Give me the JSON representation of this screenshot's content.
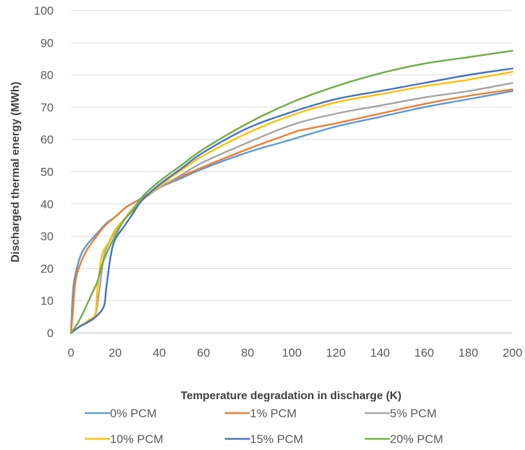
{
  "chart_data": {
    "type": "line",
    "title": "",
    "xlabel": "Temperature degradation in discharge (K)",
    "ylabel": "Discharged thermal energy (MWh)",
    "xlim": [
      0,
      200
    ],
    "ylim": [
      0,
      100
    ],
    "xticks": [
      0,
      20,
      40,
      60,
      80,
      100,
      120,
      140,
      160,
      180,
      200
    ],
    "yticks": [
      0,
      10,
      20,
      30,
      40,
      50,
      60,
      70,
      80,
      90,
      100
    ],
    "grid": "horizontal",
    "legend_position": "bottom",
    "series": [
      {
        "name": "0% PCM",
        "color": "#5B9BD5",
        "points": [
          [
            0,
            0
          ],
          [
            1,
            14
          ],
          [
            3,
            21
          ],
          [
            5,
            25
          ],
          [
            8,
            28
          ],
          [
            12,
            31
          ],
          [
            16,
            34
          ],
          [
            20,
            36
          ],
          [
            25,
            39
          ],
          [
            30,
            41
          ],
          [
            40,
            45
          ],
          [
            50,
            48
          ],
          [
            60,
            51
          ],
          [
            80,
            56
          ],
          [
            100,
            60
          ],
          [
            120,
            64
          ],
          [
            140,
            67
          ],
          [
            160,
            70
          ],
          [
            180,
            72.5
          ],
          [
            200,
            75
          ]
        ]
      },
      {
        "name": "1% PCM",
        "color": "#ED7D31",
        "points": [
          [
            0,
            0
          ],
          [
            1,
            8
          ],
          [
            2,
            16
          ],
          [
            4,
            21
          ],
          [
            7,
            25.5
          ],
          [
            10,
            28.5
          ],
          [
            15,
            33
          ],
          [
            20,
            36
          ],
          [
            25,
            39
          ],
          [
            30,
            41
          ],
          [
            40,
            45
          ],
          [
            50,
            48.5
          ],
          [
            60,
            51.5
          ],
          [
            80,
            57
          ],
          [
            100,
            62
          ],
          [
            105,
            63
          ],
          [
            120,
            65
          ],
          [
            140,
            68
          ],
          [
            160,
            71
          ],
          [
            180,
            73.5
          ],
          [
            200,
            75.5
          ]
        ]
      },
      {
        "name": "5% PCM",
        "color": "#A5A5A5",
        "points": [
          [
            0,
            0
          ],
          [
            4,
            2
          ],
          [
            8,
            3.5
          ],
          [
            11,
            5.5
          ],
          [
            13,
            14
          ],
          [
            15,
            24
          ],
          [
            18,
            29
          ],
          [
            22,
            33
          ],
          [
            26,
            37
          ],
          [
            30,
            40
          ],
          [
            40,
            45
          ],
          [
            50,
            49
          ],
          [
            60,
            53
          ],
          [
            80,
            59
          ],
          [
            100,
            64.5
          ],
          [
            120,
            68
          ],
          [
            140,
            70.5
          ],
          [
            160,
            73
          ],
          [
            180,
            75
          ],
          [
            200,
            77.5
          ]
        ]
      },
      {
        "name": "10% PCM",
        "color": "#FFC000",
        "points": [
          [
            0,
            0
          ],
          [
            4,
            2
          ],
          [
            8,
            4
          ],
          [
            11,
            6
          ],
          [
            12,
            14
          ],
          [
            14,
            24
          ],
          [
            17,
            28
          ],
          [
            20,
            32
          ],
          [
            25,
            36
          ],
          [
            30,
            40
          ],
          [
            40,
            45.5
          ],
          [
            50,
            50.5
          ],
          [
            60,
            55
          ],
          [
            80,
            62
          ],
          [
            100,
            67.5
          ],
          [
            120,
            71.5
          ],
          [
            140,
            74
          ],
          [
            160,
            76.5
          ],
          [
            180,
            78.5
          ],
          [
            200,
            81
          ]
        ]
      },
      {
        "name": "15% PCM",
        "color": "#4472C4",
        "points": [
          [
            0,
            0
          ],
          [
            4,
            2
          ],
          [
            8,
            3.5
          ],
          [
            12,
            5.5
          ],
          [
            15,
            8.5
          ],
          [
            16,
            14
          ],
          [
            18,
            24
          ],
          [
            20,
            29
          ],
          [
            24,
            33
          ],
          [
            28,
            37
          ],
          [
            32,
            41
          ],
          [
            40,
            46
          ],
          [
            50,
            51
          ],
          [
            60,
            56
          ],
          [
            80,
            63.5
          ],
          [
            100,
            68.5
          ],
          [
            120,
            72.5
          ],
          [
            140,
            75
          ],
          [
            160,
            77.5
          ],
          [
            180,
            80
          ],
          [
            200,
            82
          ]
        ]
      },
      {
        "name": "20% PCM",
        "color": "#70AD47",
        "points": [
          [
            0,
            0
          ],
          [
            3,
            3
          ],
          [
            6,
            7
          ],
          [
            9,
            11.5
          ],
          [
            12,
            16
          ],
          [
            14,
            21
          ],
          [
            17,
            26
          ],
          [
            20,
            30
          ],
          [
            24,
            35
          ],
          [
            28,
            38
          ],
          [
            32,
            42
          ],
          [
            40,
            47
          ],
          [
            50,
            52
          ],
          [
            60,
            57
          ],
          [
            80,
            65
          ],
          [
            100,
            71.5
          ],
          [
            120,
            76.5
          ],
          [
            140,
            80.5
          ],
          [
            160,
            83.5
          ],
          [
            180,
            85.5
          ],
          [
            200,
            87.5
          ]
        ]
      }
    ]
  }
}
